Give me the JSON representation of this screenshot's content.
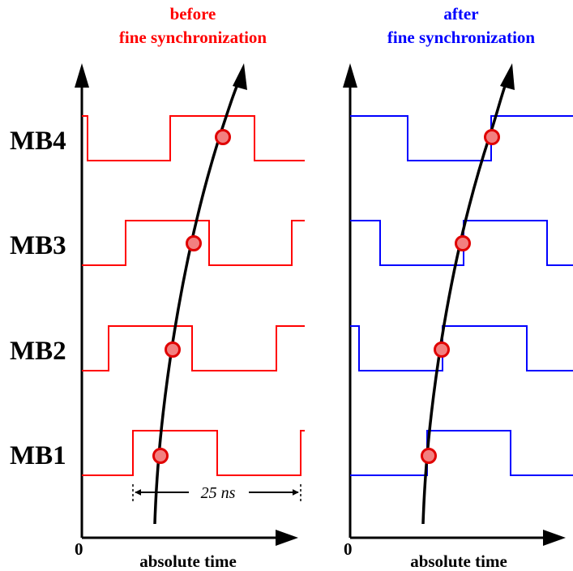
{
  "left_panel": {
    "title_line1": "before",
    "title_line2": "fine synchronization",
    "color": "#ff0000",
    "x_label": "absolute time",
    "origin_label": "0",
    "period_label": "25 ns"
  },
  "right_panel": {
    "title_line1": "after",
    "title_line2": "fine synchronization",
    "color": "#0000ff",
    "x_label": "absolute time",
    "origin_label": "0"
  },
  "rows": [
    {
      "label": "MB4"
    },
    {
      "label": "MB3"
    },
    {
      "label": "MB2"
    },
    {
      "label": "MB1"
    }
  ],
  "colors": {
    "marker_fill": "#f28080",
    "marker_stroke": "#e00000",
    "curve": "#000000"
  }
}
